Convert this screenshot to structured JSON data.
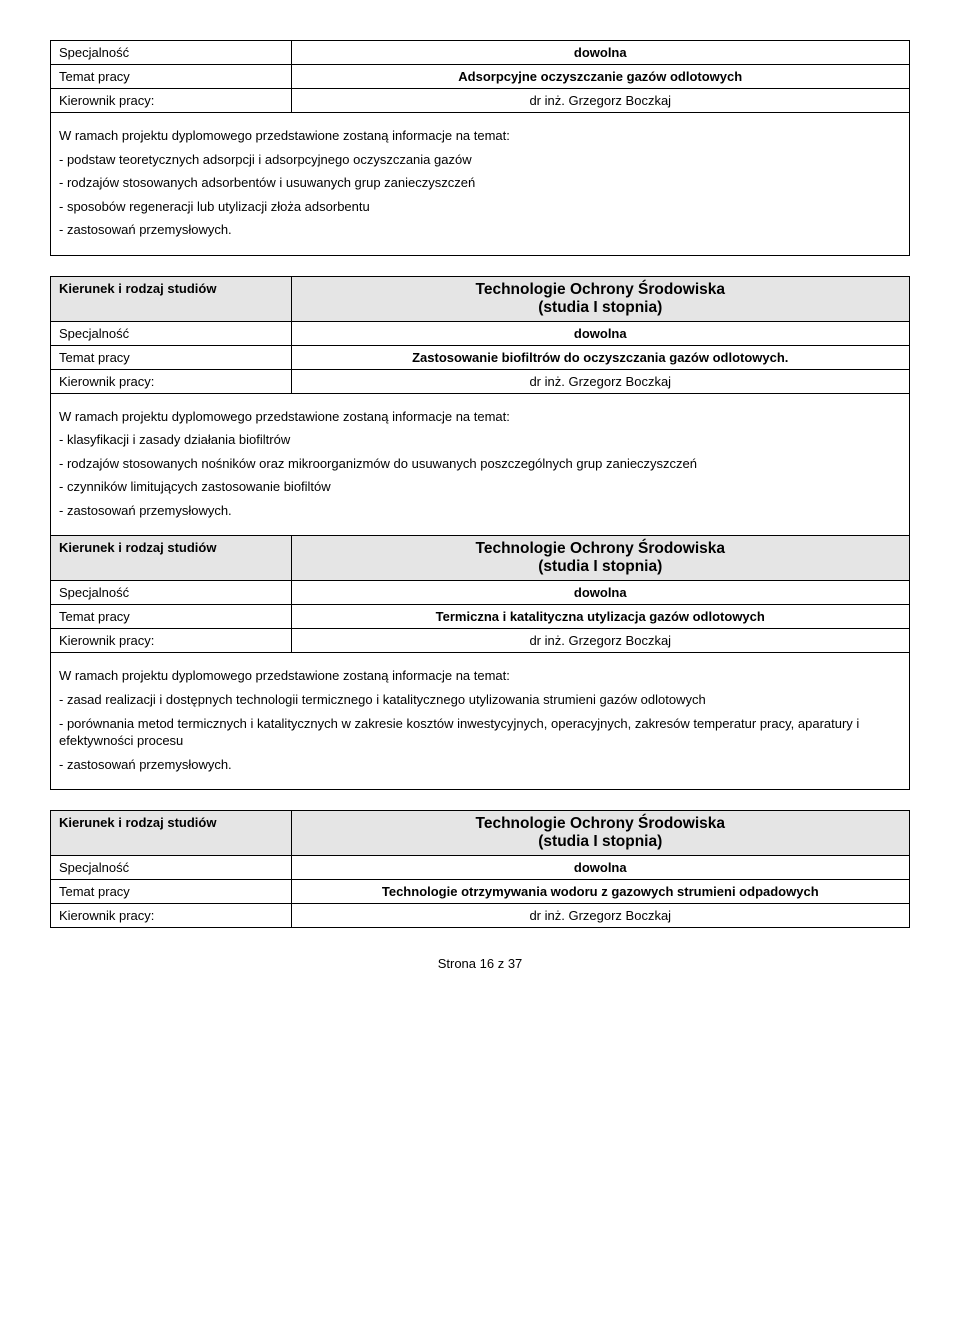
{
  "colors": {
    "shaded_bg": "#e5e5e5",
    "border": "#000000",
    "text": "#000000",
    "page_bg": "#ffffff"
  },
  "labels": {
    "specjalnosc": "Specjalność",
    "temat": "Temat pracy",
    "kierownik": "Kierownik pracy:",
    "kierunek": "Kierunek i rodzaj studiów"
  },
  "common": {
    "specjalnosc_val": "dowolna",
    "kierownik_val": "dr inż. Grzegorz Boczkaj",
    "kierunek_line1": "Technologie Ochrony Środowiska",
    "kierunek_line2": "(studia I stopnia)",
    "desc_intro": "W ramach projektu dyplomowego przedstawione zostaną informacje na temat:"
  },
  "block1": {
    "temat": "Adsorpcyjne oczyszczanie gazów odlotowych",
    "bullets": [
      "- podstaw teoretycznych adsorpcji i adsorpcyjnego oczyszczania gazów",
      "- rodzajów stosowanych adsorbentów i usuwanych grup zanieczyszczeń",
      "- sposobów regeneracji lub utylizacji złoża adsorbentu",
      "- zastosowań przemysłowych."
    ]
  },
  "block2": {
    "temat": "Zastosowanie biofiltrów do oczyszczania gazów odlotowych.",
    "bullets": [
      "- klasyfikacji i zasady działania biofiltrów",
      "- rodzajów stosowanych nośników oraz mikroorganizmów do usuwanych poszczególnych grup zanieczyszczeń",
      "- czynników limitujących zastosowanie biofiltów",
      "- zastosowań przemysłowych."
    ]
  },
  "block3": {
    "temat": "Termiczna i katalityczna utylizacja gazów odlotowych",
    "bullets": [
      "- zasad realizacji i dostępnych technologii termicznego i katalitycznego utylizowania strumieni gazów odlotowych",
      "- porównania metod termicznych i katalitycznych w zakresie kosztów inwestycyjnych, operacyjnych, zakresów temperatur pracy, aparatury i efektywności procesu",
      "- zastosowań przemysłowych."
    ]
  },
  "block4": {
    "temat": "Technologie otrzymywania wodoru z gazowych strumieni odpadowych"
  },
  "footer": "Strona 16 z 37"
}
